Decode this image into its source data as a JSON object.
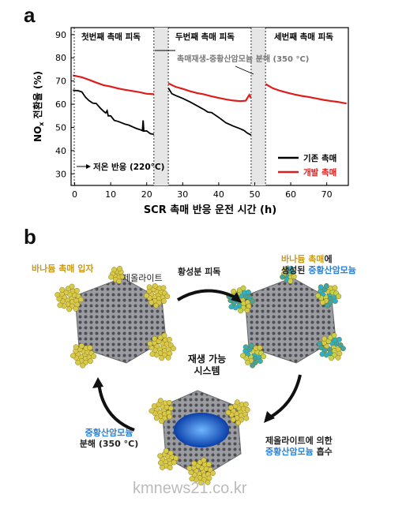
{
  "panel_a": {
    "letter": "a",
    "ylabel": "NO",
    "ylabel_sub": "x",
    "ylabel_rest": " 전환율 (%)",
    "xlabel": "SCR 촉매 반응 운전 시간 (h)",
    "phase_labels": [
      "첫번째 촉매 피독",
      "두번째 촉매 피독",
      "세번째 촉매 피독"
    ],
    "regen_annotation": "촉매재생-중황산암모늄 분해 (350 °C)",
    "low_temp_annotation": "저온 반응 (220°C)",
    "legend": [
      {
        "label": "기존 촉매",
        "color": "#000000"
      },
      {
        "label": "개발 촉매",
        "color": "#e01b1b"
      }
    ]
  },
  "chart_data": {
    "type": "line",
    "xlabel": "SCR 촉매 반응 운전 시간 (h)",
    "ylabel": "NOx 전환율 (%)",
    "xlim": [
      -1,
      76
    ],
    "ylim": [
      25,
      93
    ],
    "x_ticks": [
      0,
      10,
      20,
      30,
      40,
      50,
      60,
      70
    ],
    "y_ticks": [
      30,
      40,
      50,
      60,
      70,
      80,
      90
    ],
    "shaded_regions": [
      [
        22,
        26
      ],
      [
        49,
        53
      ]
    ],
    "series": [
      {
        "name": "기존 촉매",
        "color": "#000000",
        "segments": [
          [
            [
              -0.5,
              66
            ],
            [
              1,
              65.8
            ],
            [
              2,
              65.3
            ],
            [
              3,
              63
            ],
            [
              4,
              61.5
            ],
            [
              5,
              60.5
            ],
            [
              6,
              60.3
            ],
            [
              7,
              58.5
            ],
            [
              8,
              57
            ],
            [
              8.6,
              56.2
            ],
            [
              9,
              57.2
            ],
            [
              9.3,
              55
            ],
            [
              10,
              55
            ],
            [
              11,
              53
            ],
            [
              12,
              52.6
            ],
            [
              13,
              52
            ],
            [
              14,
              51.4
            ],
            [
              15,
              51
            ],
            [
              16,
              50.3
            ],
            [
              17,
              49.6
            ],
            [
              18,
              49.1
            ],
            [
              18.8,
              48.6
            ],
            [
              19,
              53
            ],
            [
              19.2,
              48.4
            ],
            [
              20,
              48.5
            ],
            [
              21,
              47.3
            ],
            [
              22,
              47
            ]
          ],
          [
            [
              26,
              67
            ],
            [
              27,
              64.5
            ],
            [
              28,
              63.8
            ],
            [
              30,
              62.5
            ],
            [
              32,
              61
            ],
            [
              34,
              59.3
            ],
            [
              36,
              57.6
            ],
            [
              37,
              56.6
            ],
            [
              38,
              56.4
            ],
            [
              40,
              54.3
            ],
            [
              42,
              52
            ],
            [
              44,
              50.6
            ],
            [
              46,
              49.4
            ],
            [
              47,
              48.7
            ],
            [
              48,
              47.5
            ],
            [
              49,
              46.7
            ]
          ]
        ]
      },
      {
        "name": "개발 촉매",
        "color": "#e01b1b",
        "segments": [
          [
            [
              -0.5,
              72.4
            ],
            [
              2,
              71.6
            ],
            [
              4,
              70.5
            ],
            [
              6,
              69.3
            ],
            [
              8,
              68.2
            ],
            [
              10,
              67.6
            ],
            [
              12,
              66.8
            ],
            [
              14,
              66.2
            ],
            [
              16,
              65.7
            ],
            [
              18,
              65.2
            ],
            [
              20,
              64.5
            ],
            [
              22,
              64.3
            ]
          ],
          [
            [
              26,
              69
            ],
            [
              28,
              67.5
            ],
            [
              30,
              66.6
            ],
            [
              32,
              65.6
            ],
            [
              34,
              64.8
            ],
            [
              36,
              64.2
            ],
            [
              38,
              63.4
            ],
            [
              40,
              62.7
            ],
            [
              42,
              62.1
            ],
            [
              44,
              61.6
            ],
            [
              46,
              61.3
            ],
            [
              47.5,
              61.5
            ],
            [
              48.5,
              64
            ],
            [
              49,
              62.6
            ]
          ],
          [
            [
              53,
              68.7
            ],
            [
              55,
              66.9
            ],
            [
              57,
              65.8
            ],
            [
              59,
              65
            ],
            [
              61,
              64.2
            ],
            [
              63,
              63.6
            ],
            [
              65,
              63.1
            ],
            [
              67,
              62.5
            ],
            [
              69,
              61.9
            ],
            [
              71,
              61.4
            ],
            [
              73,
              61
            ],
            [
              75.5,
              60.3
            ]
          ]
        ]
      }
    ]
  },
  "panel_b": {
    "letter": "b",
    "vanadium_particle": "바나듐 촉매 입자",
    "zeolite": "제올라이트",
    "sulfur_poisoning": "황성분 피독",
    "top_right_line1_gold": "바나듐 촉매",
    "top_right_line1_rest": "에",
    "top_right_line2_dark": "생성된 ",
    "top_right_line2_blue": "중황산암모늄",
    "regen_center_1": "재생 가능",
    "regen_center_2": "시스템",
    "left_blue": "중황산암모늄",
    "left_dark": "분해 (350 °C)",
    "right_line1": "제올라이트에 의한",
    "right_line2_blue": "중황산암모늄",
    "right_line2_dark": " 흡수",
    "watermark": "kmnews21.co.kr",
    "colors": {
      "gold": "#c79a1d",
      "blue": "#2a7fd6",
      "particle": "#d9c94a",
      "zeolite": "#8d8f94"
    }
  }
}
